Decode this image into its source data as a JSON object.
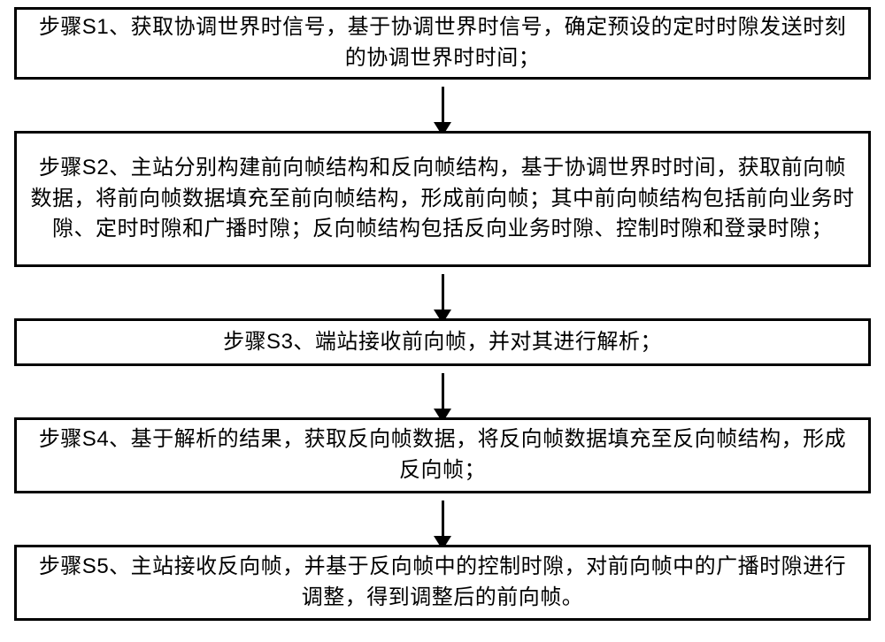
{
  "diagram": {
    "type": "flowchart",
    "direction": "vertical",
    "background_color": "#ffffff",
    "box_border_color": "#000000",
    "box_border_width": 3,
    "text_color": "#000000",
    "font_size": 24,
    "arrow_color": "#000000",
    "arrow_shaft_width": 3,
    "arrow_head_width": 20,
    "arrow_head_height": 16,
    "nodes": [
      {
        "id": "s1",
        "text": "步骤S1、获取协调世界时信号，基于协调世界时信号，确定预设的定时时隙发送时刻的协调世界时时间；",
        "height": 82
      },
      {
        "id": "s2",
        "text": "步骤S2、主站分别构建前向帧结构和反向帧结构，基于协调世界时时间，获取前向帧数据，将前向帧数据填充至前向帧结构，形成前向帧；其中前向帧结构包括前向业务时隙、定时时隙和广播时隙；反向帧结构包括反向业务时隙、控制时隙和登录时隙；",
        "height": 154
      },
      {
        "id": "s3",
        "text": "步骤S3、端站接收前向帧，并对其进行解析；",
        "height": 54
      },
      {
        "id": "s4",
        "text": "步骤S4、基于解析的结果，获取反向帧数据，将反向帧数据填充至反向帧结构，形成反向帧；",
        "height": 86
      },
      {
        "id": "s5",
        "text": "步骤S5、主站接收反向帧，并基于反向帧中的控制时隙，对前向帧中的广播时隙进行调整，得到调整后的前向帧。",
        "height": 86
      }
    ],
    "edges": [
      {
        "from": "s1",
        "to": "s2"
      },
      {
        "from": "s2",
        "to": "s3"
      },
      {
        "from": "s3",
        "to": "s4"
      },
      {
        "from": "s4",
        "to": "s5"
      }
    ]
  }
}
